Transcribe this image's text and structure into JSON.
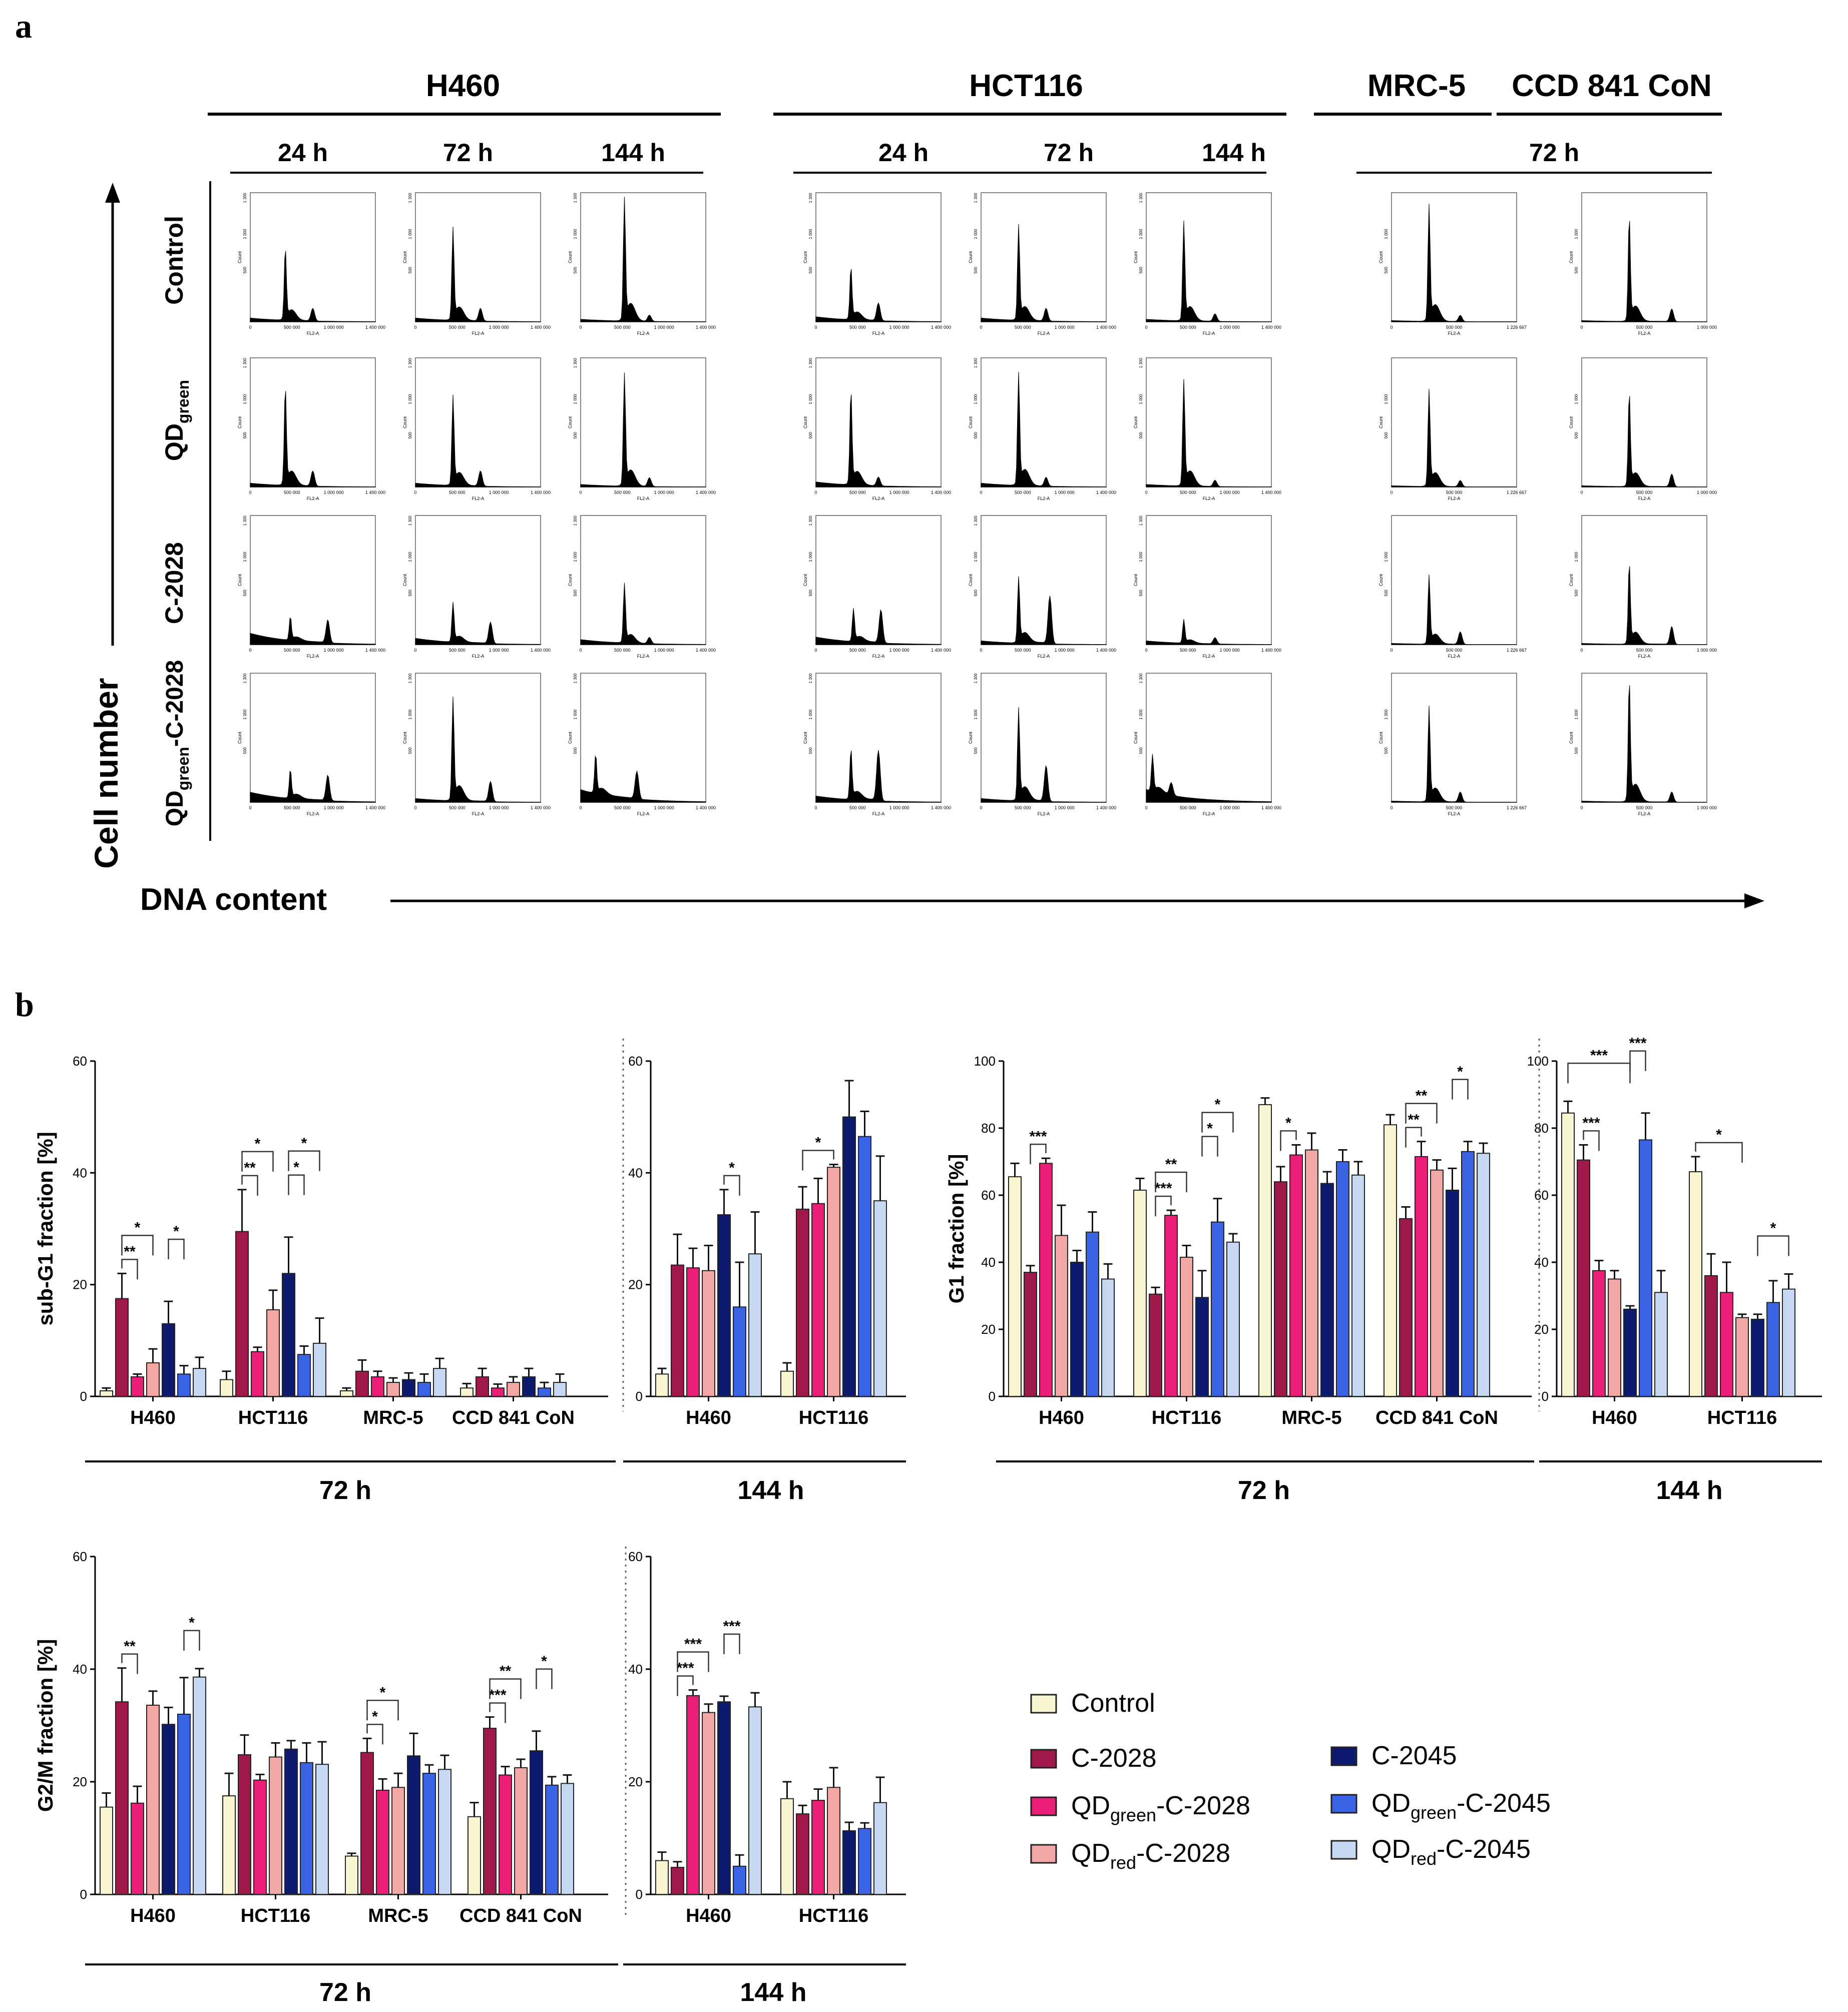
{
  "panel_a": {
    "label": "a",
    "groups": [
      {
        "name": "H460",
        "times": [
          "24 h",
          "72 h",
          "144 h"
        ]
      },
      {
        "name": "HCT116",
        "times": [
          "24 h",
          "72 h",
          "144 h"
        ]
      },
      {
        "name": "MRC-5",
        "times": []
      },
      {
        "name": "CCD 841 CoN",
        "times": []
      }
    ],
    "mrc_ccd_time": "72 h",
    "rows": [
      {
        "main": "Control",
        "sub": "",
        "tail": ""
      },
      {
        "main": "QD",
        "sub": "green",
        "tail": ""
      },
      {
        "main": "C-2028",
        "sub": "",
        "tail": ""
      },
      {
        "main": "QD",
        "sub": "green",
        "tail": "-C-2028"
      }
    ],
    "y_axis_label": "Cell number",
    "x_axis_label": "DNA content",
    "hist_ylabel": "Count",
    "hist_xlabel": "FL2-A",
    "hist_ticks_h460": [
      "0",
      "500 000",
      "1 000 000",
      "1 400 000"
    ],
    "hist_ticks_mrc": [
      "0",
      "500 000",
      "1 226 667"
    ],
    "hist_ticks_ccd": [
      "0",
      "500 000",
      "1 000 000"
    ],
    "hist_yticks_h460": [
      "500",
      "1 000",
      "1 300"
    ],
    "hist_yticks_mrc": [
      "500",
      "1 000"
    ]
  },
  "panel_b": {
    "label": "b",
    "legend": [
      {
        "name": "Control",
        "base": "Control",
        "sub": "",
        "tail": "",
        "color": "#F7F6D0"
      },
      {
        "name": "C-2028",
        "base": "C-2028",
        "sub": "",
        "tail": "",
        "color": "#A0184A"
      },
      {
        "name": "QDgreen-C-2028",
        "base": "QD",
        "sub": "green",
        "tail": "-C-2028",
        "color": "#EC1F78"
      },
      {
        "name": "QDred-C-2028",
        "base": "QD",
        "sub": "red",
        "tail": "-C-2028",
        "color": "#F2A7A4"
      },
      {
        "name": "C-2045",
        "base": "C-2045",
        "sub": "",
        "tail": "",
        "color": "#0E1A6E"
      },
      {
        "name": "QDgreen-C-2045",
        "base": "QD",
        "sub": "green",
        "tail": "-C-2045",
        "color": "#3B63E5"
      },
      {
        "name": "QDred-C-2045",
        "base": "QD",
        "sub": "red",
        "tail": "-C-2045",
        "color": "#C7D8F2"
      }
    ]
  },
  "chart_data": [
    {
      "type": "bar",
      "id": "subG1-72h",
      "ylabel": "sub-G1 fraction [%]",
      "ylim": [
        0,
        60
      ],
      "yticks": [
        0,
        20,
        40,
        60
      ],
      "categories": [
        "H460",
        "HCT116",
        "MRC-5",
        "CCD 841 CoN"
      ],
      "time_label": "72 h",
      "series_values": [
        [
          1,
          3,
          1,
          1.5
        ],
        [
          17.5,
          29.5,
          4.5,
          3.5
        ],
        [
          3.5,
          8,
          3.5,
          1.5
        ],
        [
          6,
          15.5,
          2.5,
          2.5
        ],
        [
          13,
          22,
          3,
          3.5
        ],
        [
          4,
          7.5,
          2.5,
          1.5
        ],
        [
          5,
          9.5,
          5,
          2.5
        ]
      ],
      "series_errors": [
        [
          0.5,
          1.5,
          0.5,
          0.8
        ],
        [
          4.5,
          7.5,
          2,
          1.5
        ],
        [
          0.5,
          0.8,
          1,
          0.7
        ],
        [
          2.5,
          3.5,
          0.8,
          1
        ],
        [
          4,
          6.5,
          1.2,
          1.5
        ],
        [
          1.5,
          1.5,
          1.5,
          1
        ],
        [
          2,
          4.5,
          1.8,
          1.5
        ]
      ],
      "significance": [
        {
          "cat": 0,
          "from": 1,
          "to": 2,
          "label": "**"
        },
        {
          "cat": 0,
          "from": 1,
          "to": 3,
          "label": "*"
        },
        {
          "cat": 0,
          "from": 4,
          "to": 5,
          "label": "*"
        },
        {
          "cat": 1,
          "from": 1,
          "to": 2,
          "label": "**"
        },
        {
          "cat": 1,
          "from": 1,
          "to": 3,
          "label": "*"
        },
        {
          "cat": 1,
          "from": 4,
          "to": 5,
          "label": "*"
        },
        {
          "cat": 1,
          "from": 4,
          "to": 6,
          "label": "*"
        }
      ]
    },
    {
      "type": "bar",
      "id": "subG1-144h",
      "ylabel": "",
      "ylim": [
        0,
        60
      ],
      "yticks": [
        0,
        20,
        40,
        60
      ],
      "categories": [
        "H460",
        "HCT116"
      ],
      "time_label": "144 h",
      "series_values": [
        [
          4,
          4.5
        ],
        [
          23.5,
          33.5
        ],
        [
          23,
          34.5
        ],
        [
          22.5,
          41
        ],
        [
          32.5,
          50
        ],
        [
          16,
          46.5
        ],
        [
          25.5,
          35
        ]
      ],
      "series_errors": [
        [
          1,
          1.5
        ],
        [
          5.5,
          4
        ],
        [
          3.5,
          4.5
        ],
        [
          4.5,
          0.5
        ],
        [
          4.5,
          6.5
        ],
        [
          8,
          4.5
        ],
        [
          7.5,
          8
        ]
      ],
      "significance": [
        {
          "cat": 0,
          "from": 4,
          "to": 5,
          "label": "*"
        },
        {
          "cat": 1,
          "from": 1,
          "to": 3,
          "label": "*"
        }
      ]
    },
    {
      "type": "bar",
      "id": "G1-72h",
      "ylabel": "G1 fraction [%]",
      "ylim": [
        0,
        100
      ],
      "yticks": [
        0,
        20,
        40,
        60,
        80,
        100
      ],
      "categories": [
        "H460",
        "HCT116",
        "MRC-5",
        "CCD 841 CoN"
      ],
      "time_label": "72 h",
      "series_values": [
        [
          65.5,
          61.5,
          87,
          81
        ],
        [
          37,
          30.5,
          64,
          53
        ],
        [
          69.5,
          54,
          72,
          71.5
        ],
        [
          48,
          41.5,
          73.5,
          67.5
        ],
        [
          40,
          29.5,
          63.5,
          61.5
        ],
        [
          49,
          52,
          70,
          73
        ],
        [
          35,
          46,
          66,
          72.5
        ]
      ],
      "series_errors": [
        [
          4,
          3.5,
          2,
          3
        ],
        [
          2,
          2,
          4.5,
          3.5
        ],
        [
          1.5,
          1.5,
          3,
          4.5
        ],
        [
          9,
          3.5,
          5,
          3
        ],
        [
          3.5,
          8,
          3.5,
          6.5
        ],
        [
          6,
          7,
          3.5,
          3
        ],
        [
          4.5,
          2.5,
          4,
          3
        ]
      ],
      "significance": [
        {
          "cat": 0,
          "from": 1,
          "to": 2,
          "label": "***"
        },
        {
          "cat": 1,
          "from": 1,
          "to": 2,
          "label": "***"
        },
        {
          "cat": 1,
          "from": 1,
          "to": 3,
          "label": "**"
        },
        {
          "cat": 1,
          "from": 4,
          "to": 5,
          "label": "*"
        },
        {
          "cat": 1,
          "from": 4,
          "to": 6,
          "label": "*"
        },
        {
          "cat": 2,
          "from": 1,
          "to": 2,
          "label": "*"
        },
        {
          "cat": 3,
          "from": 1,
          "to": 2,
          "label": "**"
        },
        {
          "cat": 3,
          "from": 1,
          "to": 3,
          "label": "**"
        },
        {
          "cat": 3,
          "from": 4,
          "to": 5,
          "label": "*"
        }
      ]
    },
    {
      "type": "bar",
      "id": "G1-144h",
      "ylabel": "",
      "ylim": [
        0,
        100
      ],
      "yticks": [
        0,
        20,
        40,
        60,
        80,
        100
      ],
      "categories": [
        "H460",
        "HCT116"
      ],
      "time_label": "144 h",
      "series_values": [
        [
          84.5,
          67
        ],
        [
          70.5,
          36
        ],
        [
          37.5,
          31
        ],
        [
          35,
          23.5
        ],
        [
          26,
          23
        ],
        [
          76.5,
          28
        ],
        [
          31,
          32
        ]
      ],
      "series_errors": [
        [
          3.5,
          4.5
        ],
        [
          4.5,
          6.5
        ],
        [
          3,
          9
        ],
        [
          2.5,
          1
        ],
        [
          1,
          1.5
        ],
        [
          8,
          6.5
        ],
        [
          6.5,
          4.5
        ]
      ],
      "significance": [
        {
          "cat": 0,
          "from": 1,
          "to": 2,
          "label": "***"
        },
        {
          "cat": 0,
          "from": 0,
          "to": 4,
          "label": "***"
        },
        {
          "cat": 0,
          "from": 4,
          "to": 5,
          "label": "***"
        },
        {
          "cat": 1,
          "from": 0,
          "to": 3,
          "label": "*"
        },
        {
          "cat": 1,
          "from": 4,
          "to": 6,
          "label": "*"
        }
      ]
    },
    {
      "type": "bar",
      "id": "G2M-72h",
      "ylabel": "G2/M fraction [%]",
      "ylim": [
        0,
        60
      ],
      "yticks": [
        0,
        20,
        40,
        60
      ],
      "categories": [
        "H460",
        "HCT116",
        "MRC-5",
        "CCD 841 CoN"
      ],
      "time_label": "72 h",
      "series_values": [
        [
          15.5,
          17.5,
          6.8,
          13.8
        ],
        [
          34.2,
          24.8,
          25.2,
          29.5
        ],
        [
          16.2,
          20.3,
          18.5,
          21.2
        ],
        [
          33.6,
          24.4,
          19,
          22.5
        ],
        [
          30.2,
          25.8,
          24.6,
          25.5
        ],
        [
          32,
          23.4,
          21.5,
          19.4
        ],
        [
          38.6,
          23.1,
          22.2,
          19.7
        ]
      ],
      "series_errors": [
        [
          2.5,
          4,
          0.5,
          2.5
        ],
        [
          6,
          3.5,
          2.5,
          2
        ],
        [
          3,
          1,
          2,
          1.5
        ],
        [
          2.5,
          2.5,
          2.5,
          1.5
        ],
        [
          3,
          1.5,
          4,
          3.5
        ],
        [
          6.5,
          3.5,
          1.5,
          1.5
        ],
        [
          1.5,
          4,
          2.5,
          1.5
        ]
      ],
      "significance": [
        {
          "cat": 0,
          "from": 1,
          "to": 2,
          "label": "**"
        },
        {
          "cat": 0,
          "from": 5,
          "to": 6,
          "label": "*"
        },
        {
          "cat": 2,
          "from": 1,
          "to": 2,
          "label": "*"
        },
        {
          "cat": 2,
          "from": 1,
          "to": 3,
          "label": "*"
        },
        {
          "cat": 3,
          "from": 1,
          "to": 2,
          "label": "***"
        },
        {
          "cat": 3,
          "from": 1,
          "to": 3,
          "label": "**"
        },
        {
          "cat": 3,
          "from": 4,
          "to": 5,
          "label": "*"
        }
      ]
    },
    {
      "type": "bar",
      "id": "G2M-144h",
      "ylabel": "",
      "ylim": [
        0,
        60
      ],
      "yticks": [
        0,
        20,
        40,
        60
      ],
      "categories": [
        "H460",
        "HCT116"
      ],
      "time_label": "144 h",
      "series_values": [
        [
          6,
          17
        ],
        [
          4.8,
          14.3
        ],
        [
          35.3,
          16.7
        ],
        [
          32.3,
          19
        ],
        [
          34.2,
          11.3
        ],
        [
          5,
          11.7
        ],
        [
          33.3,
          16.3
        ]
      ],
      "series_errors": [
        [
          1.5,
          3
        ],
        [
          1,
          1.5
        ],
        [
          1,
          2
        ],
        [
          1.5,
          3.5
        ],
        [
          1,
          1.5
        ],
        [
          2,
          1
        ],
        [
          2.5,
          4.5
        ]
      ],
      "significance": [
        {
          "cat": 0,
          "from": 1,
          "to": 2,
          "label": "***"
        },
        {
          "cat": 0,
          "from": 1,
          "to": 3,
          "label": "***"
        },
        {
          "cat": 0,
          "from": 4,
          "to": 5,
          "label": "***"
        }
      ]
    }
  ]
}
